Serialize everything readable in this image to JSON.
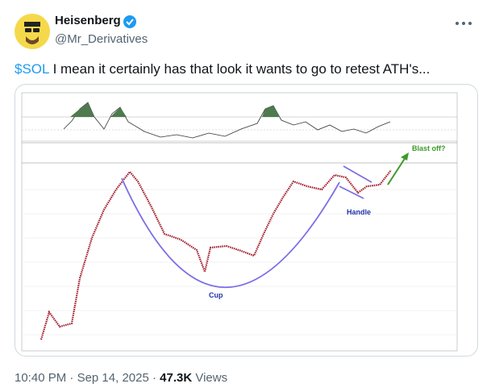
{
  "tweet": {
    "author": {
      "name": "Heisenberg",
      "handle": "@Mr_Derivatives"
    },
    "text": {
      "cashtag": "$SOL",
      "body": " I mean it certainly has that look it wants to go to retest ATH's..."
    },
    "image": {
      "annotations": [
        "Blast off?",
        "Cup",
        "Handle"
      ]
    },
    "meta": {
      "time": "10:40 PM",
      "separator": "·",
      "date": "Sep 14, 2025",
      "views": "47.3K",
      "views_label": "Views"
    }
  }
}
